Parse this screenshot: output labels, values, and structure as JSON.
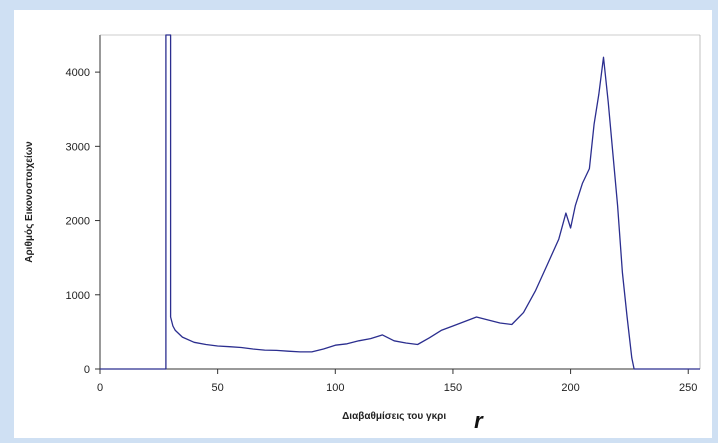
{
  "chart_data": {
    "type": "line",
    "xlabel": "Διαβαθμίσεις του γκρι",
    "xlabel_symbol": "r",
    "ylabel": "Αριθμός Εικονοστοιχείων",
    "xlim": [
      0,
      255
    ],
    "ylim": [
      0,
      4500
    ],
    "xticks": [
      0,
      50,
      100,
      150,
      200,
      250
    ],
    "yticks": [
      0,
      1000,
      2000,
      3000,
      4000
    ],
    "grid": false,
    "line_color": "#2b2e8f",
    "series": [
      {
        "x": [
          0,
          28,
          28,
          29,
          29,
          30,
          30,
          31,
          32,
          35,
          40,
          45,
          50,
          55,
          60,
          65,
          70,
          75,
          80,
          85,
          90,
          95,
          100,
          105,
          110,
          115,
          120,
          125,
          130,
          135,
          140,
          145,
          150,
          155,
          160,
          165,
          170,
          175,
          180,
          185,
          190,
          195,
          198,
          200,
          202,
          205,
          208,
          210,
          212,
          214,
          216,
          218,
          220,
          222,
          224,
          226,
          227,
          255
        ],
        "y": [
          0,
          0,
          4500,
          4500,
          4500,
          4500,
          700,
          580,
          520,
          430,
          360,
          330,
          310,
          300,
          290,
          270,
          255,
          250,
          240,
          230,
          230,
          270,
          320,
          340,
          380,
          410,
          460,
          380,
          350,
          330,
          420,
          520,
          580,
          640,
          700,
          660,
          620,
          600,
          760,
          1050,
          1400,
          1750,
          2100,
          1900,
          2200,
          2500,
          2700,
          3300,
          3700,
          4200,
          3600,
          2900,
          2200,
          1300,
          700,
          150,
          0,
          0
        ]
      }
    ]
  }
}
